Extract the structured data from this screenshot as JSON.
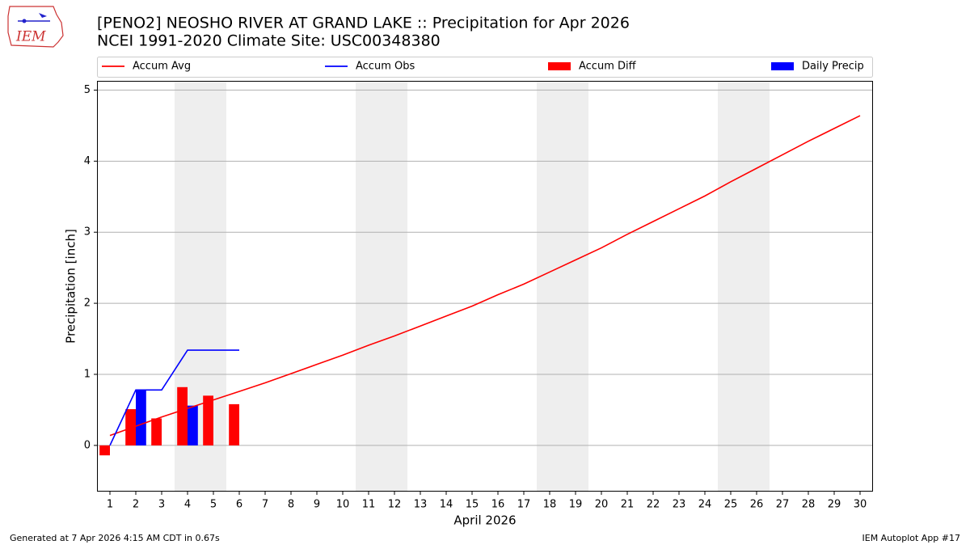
{
  "logo_text": "IEM",
  "footer_left": "Generated at 7 Apr 2026 4:15 AM CDT in 0.67s",
  "footer_right": "IEM Autoplot App #17",
  "chart_data": {
    "type": "line",
    "title": "[PENO2] NEOSHO RIVER  AT GRAND LAKE :: Precipitation for Apr 2026",
    "subtitle": "NCEI 1991-2020 Climate Site: USC00348380",
    "x_label": "April 2026",
    "y_label": "Precipitation [inch]",
    "x": [
      1,
      2,
      3,
      4,
      5,
      6,
      7,
      8,
      9,
      10,
      11,
      12,
      13,
      14,
      15,
      16,
      17,
      18,
      19,
      20,
      21,
      22,
      23,
      24,
      25,
      26,
      27,
      28,
      29,
      30
    ],
    "xlim": [
      0.5,
      30.5
    ],
    "xticks": [
      1,
      2,
      3,
      4,
      5,
      6,
      7,
      8,
      9,
      10,
      11,
      12,
      13,
      14,
      15,
      16,
      17,
      18,
      19,
      20,
      21,
      22,
      23,
      24,
      25,
      26,
      27,
      28,
      29,
      30
    ],
    "ylim": [
      -0.65,
      5.13
    ],
    "yticks": [
      0,
      1,
      2,
      3,
      4,
      5
    ],
    "grid": true,
    "legend": "top",
    "series": [
      {
        "name": "Accum Avg",
        "type": "line",
        "color": "#ff0000",
        "values": [
          0.14,
          0.27,
          0.4,
          0.52,
          0.64,
          0.76,
          0.88,
          1.01,
          1.14,
          1.27,
          1.41,
          1.54,
          1.68,
          1.82,
          1.96,
          2.12,
          2.27,
          2.44,
          2.61,
          2.78,
          2.97,
          3.15,
          3.33,
          3.51,
          3.71,
          3.9,
          4.09,
          4.28,
          4.46,
          4.64
        ]
      },
      {
        "name": "Accum Obs",
        "type": "line",
        "color": "#0000ff",
        "values": [
          0.0,
          0.78,
          0.78,
          1.34,
          1.34,
          1.34,
          null,
          null,
          null,
          null,
          null,
          null,
          null,
          null,
          null,
          null,
          null,
          null,
          null,
          null,
          null,
          null,
          null,
          null,
          null,
          null,
          null,
          null,
          null,
          null
        ]
      },
      {
        "name": "Accum Diff",
        "type": "bar",
        "color": "#ff0000",
        "values": [
          -0.14,
          0.51,
          0.38,
          0.82,
          0.7,
          0.58,
          null,
          null,
          null,
          null,
          null,
          null,
          null,
          null,
          null,
          null,
          null,
          null,
          null,
          null,
          null,
          null,
          null,
          null,
          null,
          null,
          null,
          null,
          null,
          null
        ]
      },
      {
        "name": "Daily Precip",
        "type": "bar",
        "color": "#0000ff",
        "values": [
          0.0,
          0.78,
          0.0,
          0.56,
          0.0,
          0.0,
          null,
          null,
          null,
          null,
          null,
          null,
          null,
          null,
          null,
          null,
          null,
          null,
          null,
          null,
          null,
          null,
          null,
          null,
          null,
          null,
          null,
          null,
          null,
          null
        ]
      }
    ]
  }
}
